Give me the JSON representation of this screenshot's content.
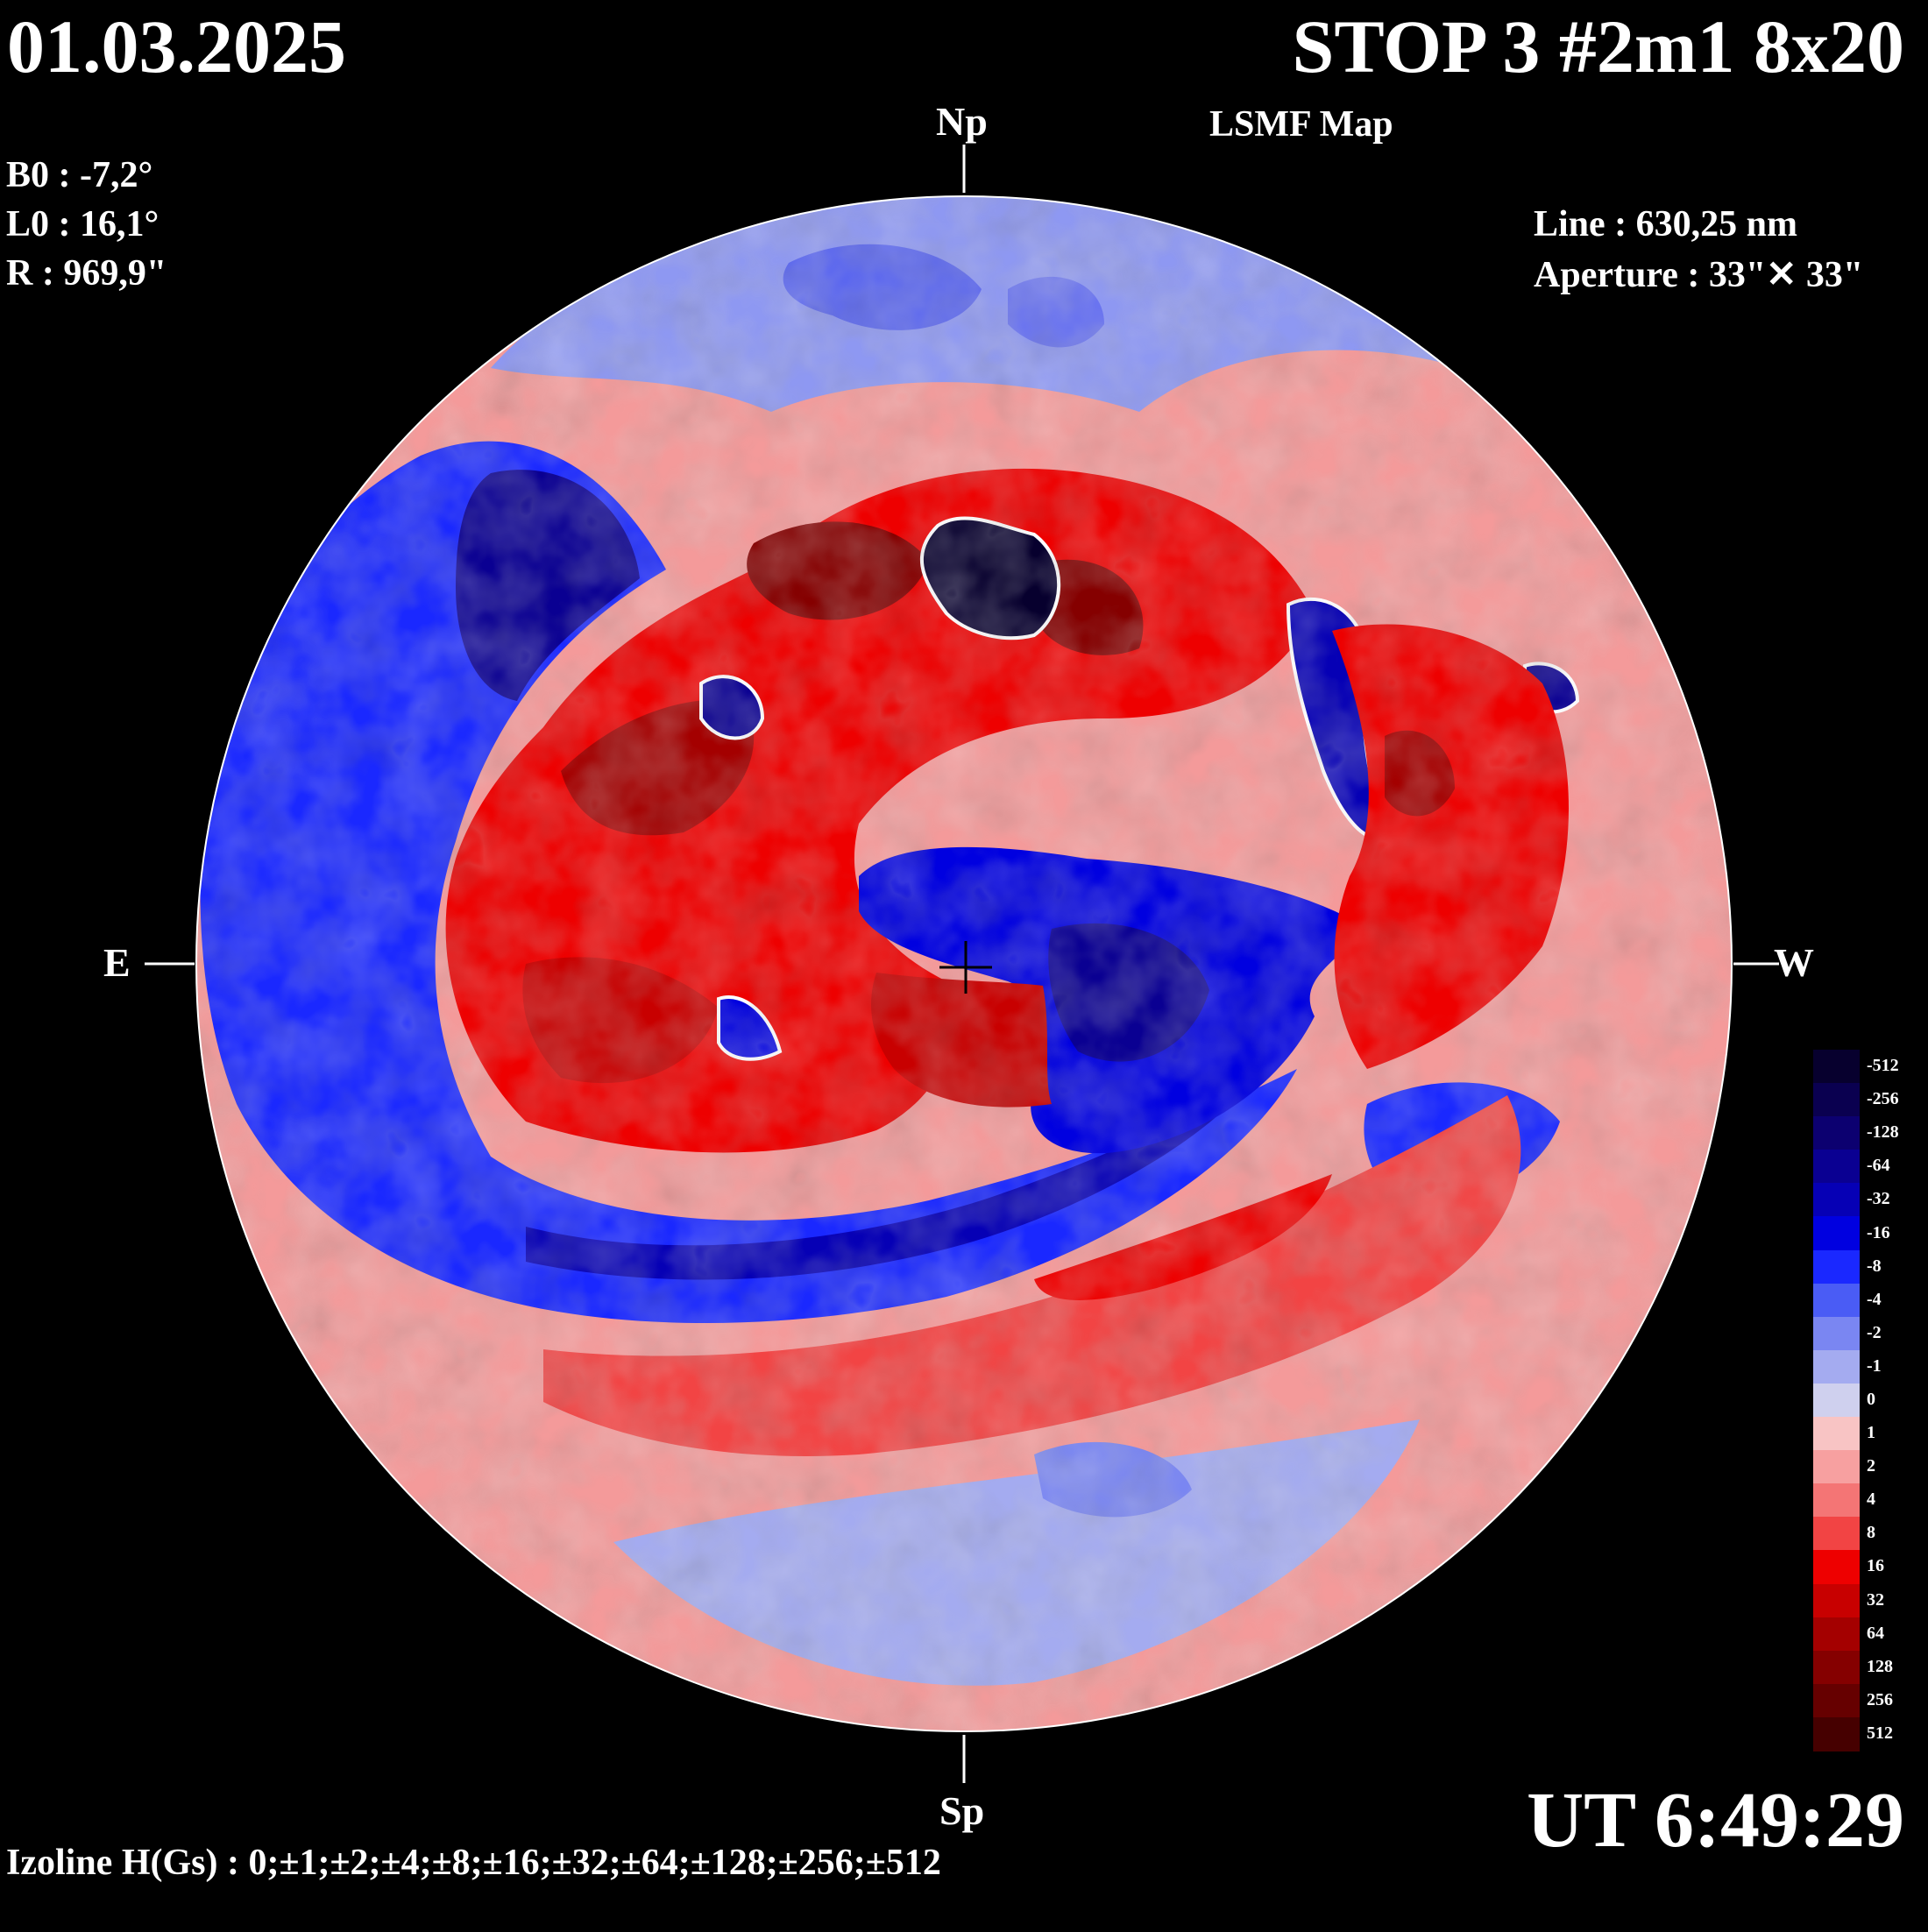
{
  "header": {
    "date": "01.03.2025",
    "title": "STOP 3 #2m1 8x20",
    "subtitle": "LSMF  Map",
    "time": "UT 6:49:29"
  },
  "params": {
    "b0": "B0 : -7,2°",
    "l0": "L0 : 16,1°",
    "r": "R  : 969,9\""
  },
  "instrument": {
    "line": "Line :  630,25 nm",
    "aperture": "Aperture : 33\"✕ 33\""
  },
  "directions": {
    "north": "Np",
    "south": "Sp",
    "east": "E",
    "west": "W"
  },
  "footer": {
    "izoline": "Izoline H(Gs) : 0;±1;±2;±4;±8;±16;±32;±64;±128;±256;±512"
  },
  "colorbar": {
    "labels": [
      "-512",
      "-256",
      "-128",
      "-64",
      "-32",
      "-16",
      "-8",
      "-4",
      "-2",
      "-1",
      "0",
      "1",
      "2",
      "4",
      "8",
      "16",
      "32",
      "64",
      "128",
      "256",
      "512"
    ],
    "colors": [
      "#07002e",
      "#0a0050",
      "#0c0070",
      "#0a0092",
      "#0600b5",
      "#0000e0",
      "#1a28ff",
      "#4a5cf5",
      "#7a86f2",
      "#a4abf0",
      "#cfd0ee",
      "#f8c4c4",
      "#f7a0a0",
      "#f47575",
      "#f24444",
      "#ee0000",
      "#c80000",
      "#a40000",
      "#850000",
      "#660000",
      "#460000"
    ]
  }
}
